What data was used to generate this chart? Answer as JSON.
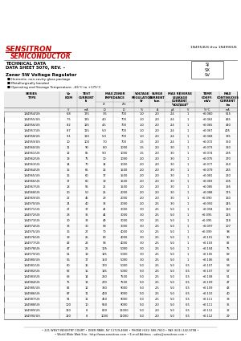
{
  "title_company": "SENSITRON",
  "title_sub": "SEMICONDUCTOR",
  "part_range": "1N4954US thru 1N4990US",
  "tech_data": "TECHNICAL DATA",
  "data_sheet": "DATA SHEET 5070, REV. –",
  "product_title": "Zener 5W Voltage Regulator",
  "bullets": [
    "Hermetic, non-cavity glass package",
    "Metallurgically bonded",
    "Operating and Storage Temperature: -65°C to +175°C"
  ],
  "package_codes": [
    "SJ",
    "SX",
    "SV"
  ],
  "table_data": [
    [
      "1N4954/US",
      "6.8",
      "175",
      "3.5",
      "700",
      "1.0",
      "2.0",
      "2.4",
      "1",
      "100",
      "+0.060",
      "515"
    ],
    [
      "1N4955/US",
      "7.5",
      "135",
      "4.0",
      "700",
      "1.0",
      "2.0",
      "2.4",
      "1",
      "100",
      "+0.062",
      "465"
    ],
    [
      "1N4956/US",
      "8.2",
      "125",
      "4.5",
      "700",
      "1.0",
      "2.0",
      "2.4",
      "1",
      "100",
      "+0.065",
      "430"
    ],
    [
      "1N4957/US",
      "8.7",
      "115",
      "5.0",
      "700",
      "1.0",
      "2.0",
      "2.4",
      "1",
      "100",
      "+0.067",
      "405"
    ],
    [
      "1N4958/US",
      "9.1",
      "110",
      "5.0",
      "700",
      "1.0",
      "2.0",
      "2.4",
      "1",
      "100",
      "+0.068",
      "385"
    ],
    [
      "1N4959/US",
      "10",
      "100",
      "7.0",
      "700",
      "1.5",
      "2.0",
      "2.4",
      "1",
      "100",
      "+0.072",
      "350"
    ],
    [
      "1N4960/US",
      "11",
      "90",
      "8.0",
      "1000",
      "1.5",
      "2.0",
      "3.0",
      "1",
      "100",
      "+0.073",
      "320"
    ],
    [
      "1N4961/US",
      "12",
      "85",
      "9.0",
      "1000",
      "1.5",
      "2.0",
      "3.0",
      "1",
      "100",
      "+0.074",
      "295"
    ],
    [
      "1N4962/US",
      "13",
      "75",
      "10",
      "1000",
      "2.0",
      "2.0",
      "3.0",
      "1",
      "100",
      "+0.075",
      "270"
    ],
    [
      "1N4963/US",
      "14",
      "70",
      "14",
      "1000",
      "2.0",
      "2.0",
      "3.0",
      "1",
      "100",
      "+0.077",
      "250"
    ],
    [
      "1N4964/US",
      "15",
      "65",
      "16",
      "1500",
      "2.0",
      "2.0",
      "3.0",
      "1",
      "100",
      "+0.079",
      "235"
    ],
    [
      "1N4965/US",
      "16",
      "60",
      "17",
      "1500",
      "2.0",
      "2.0",
      "3.0",
      "1",
      "100",
      "+0.081",
      "220"
    ],
    [
      "1N4966/US",
      "17",
      "60",
      "19",
      "1500",
      "2.0",
      "2.0",
      "3.0",
      "1",
      "100",
      "+0.083",
      "205"
    ],
    [
      "1N4967/US",
      "18",
      "55",
      "21",
      "1500",
      "2.0",
      "2.0",
      "3.0",
      "1",
      "100",
      "+0.085",
      "195"
    ],
    [
      "1N4968/US",
      "20",
      "50",
      "25",
      "2000",
      "2.0",
      "2.0",
      "3.0",
      "1",
      "100",
      "+0.088",
      "175"
    ],
    [
      "1N4969/US",
      "22",
      "45",
      "29",
      "2000",
      "2.0",
      "2.0",
      "3.0",
      "1",
      "100",
      "+0.090",
      "160"
    ],
    [
      "1N4970/US",
      "24",
      "40",
      "33",
      "2000",
      "2.0",
      "2.5",
      "3.0",
      "1",
      "100",
      "+0.092",
      "145"
    ],
    [
      "1N4971/US",
      "27",
      "37",
      "41",
      "3000",
      "3.0",
      "2.5",
      "5.0",
      "1",
      "100",
      "+0.094",
      "130"
    ],
    [
      "1N4972/US",
      "28",
      "35",
      "44",
      "3000",
      "3.0",
      "2.5",
      "5.0",
      "1",
      "100",
      "+0.095",
      "125"
    ],
    [
      "1N4973/US",
      "30",
      "33",
      "49",
      "3000",
      "3.0",
      "2.5",
      "5.0",
      "1",
      "100",
      "+0.095",
      "118"
    ],
    [
      "1N4974/US",
      "33",
      "30",
      "58",
      "3000",
      "3.0",
      "2.5",
      "5.0",
      "1",
      "100",
      "+0.097",
      "107"
    ],
    [
      "1N4975/US",
      "36",
      "27",
      "70",
      "4000",
      "3.0",
      "2.5",
      "5.0",
      "1",
      "100",
      "+0.099",
      "98"
    ],
    [
      "1N4976/US",
      "39",
      "25",
      "80",
      "4000",
      "3.0",
      "2.5",
      "5.0",
      "1",
      "100",
      "+0.101",
      "90"
    ],
    [
      "1N4977/US",
      "43",
      "23",
      "93",
      "4000",
      "3.0",
      "2.5",
      "5.0",
      "1",
      "100",
      "+0.103",
      "82"
    ],
    [
      "1N4978/US",
      "47",
      "21",
      "105",
      "5000",
      "3.0",
      "2.5",
      "5.0",
      "1",
      "100",
      "+0.104",
      "75"
    ],
    [
      "1N4979/US",
      "51",
      "19",
      "125",
      "5000",
      "3.0",
      "2.5",
      "5.0",
      "1",
      "100",
      "+0.105",
      "69"
    ],
    [
      "1N4980/US",
      "56",
      "17",
      "150",
      "5000",
      "3.0",
      "2.5",
      "5.0",
      "1",
      "100",
      "+0.106",
      "63"
    ],
    [
      "1N4981/US",
      "60",
      "16",
      "170",
      "5000",
      "5.0",
      "2.5",
      "5.0",
      "0.5",
      "100",
      "+0.107",
      "58"
    ],
    [
      "1N4982/US",
      "62",
      "15",
      "185",
      "5000",
      "5.0",
      "2.5",
      "5.0",
      "0.5",
      "100",
      "+0.107",
      "57"
    ],
    [
      "1N4983/US",
      "68",
      "14",
      "230",
      "7500",
      "5.0",
      "2.5",
      "5.0",
      "0.5",
      "100",
      "+0.108",
      "51"
    ],
    [
      "1N4984/US",
      "75",
      "13",
      "270",
      "7500",
      "5.0",
      "2.5",
      "5.0",
      "0.5",
      "100",
      "+0.109",
      "47"
    ],
    [
      "1N4985/US",
      "82",
      "12",
      "330",
      "9000",
      "5.0",
      "2.5",
      "5.0",
      "0.5",
      "100",
      "+0.109",
      "43"
    ],
    [
      "1N4986/US",
      "87",
      "11",
      "400",
      "9000",
      "5.0",
      "2.5",
      "5.0",
      "0.5",
      "100",
      "+0.110",
      "40"
    ],
    [
      "1N4987/US",
      "91",
      "11",
      "450",
      "9000",
      "5.0",
      "2.5",
      "5.0",
      "0.5",
      "100",
      "+0.111",
      "38"
    ],
    [
      "1N4988/US",
      "100",
      "10",
      "550",
      "9000",
      "5.0",
      "2.0",
      "5.0",
      "0.5",
      "100",
      "+0.111",
      "35"
    ],
    [
      "1N4989/US",
      "110",
      "8",
      "800",
      "11000",
      "5.0",
      "2.0",
      "5.0",
      "0.5",
      "100",
      "+0.112",
      "32"
    ],
    [
      "1N4990/US",
      "120",
      "8",
      "1000",
      "11000",
      "5.0",
      "2.0",
      "5.0",
      "0.5",
      "100",
      "+0.112",
      "29"
    ]
  ],
  "footer": "221 WEST INDUSTRY COURT • DEER PARK, NY 11729-4680 • PHONE (631) 586-7600 • FAX (631) 242-9798",
  "footer2": "World Wide Web Site : http://www.sensitron.com • E-mail Address : sales@sensitron.com",
  "bg_color": "#ffffff",
  "red_color": "#cc0000",
  "text_color": "#000000",
  "gray_color": "#666666"
}
